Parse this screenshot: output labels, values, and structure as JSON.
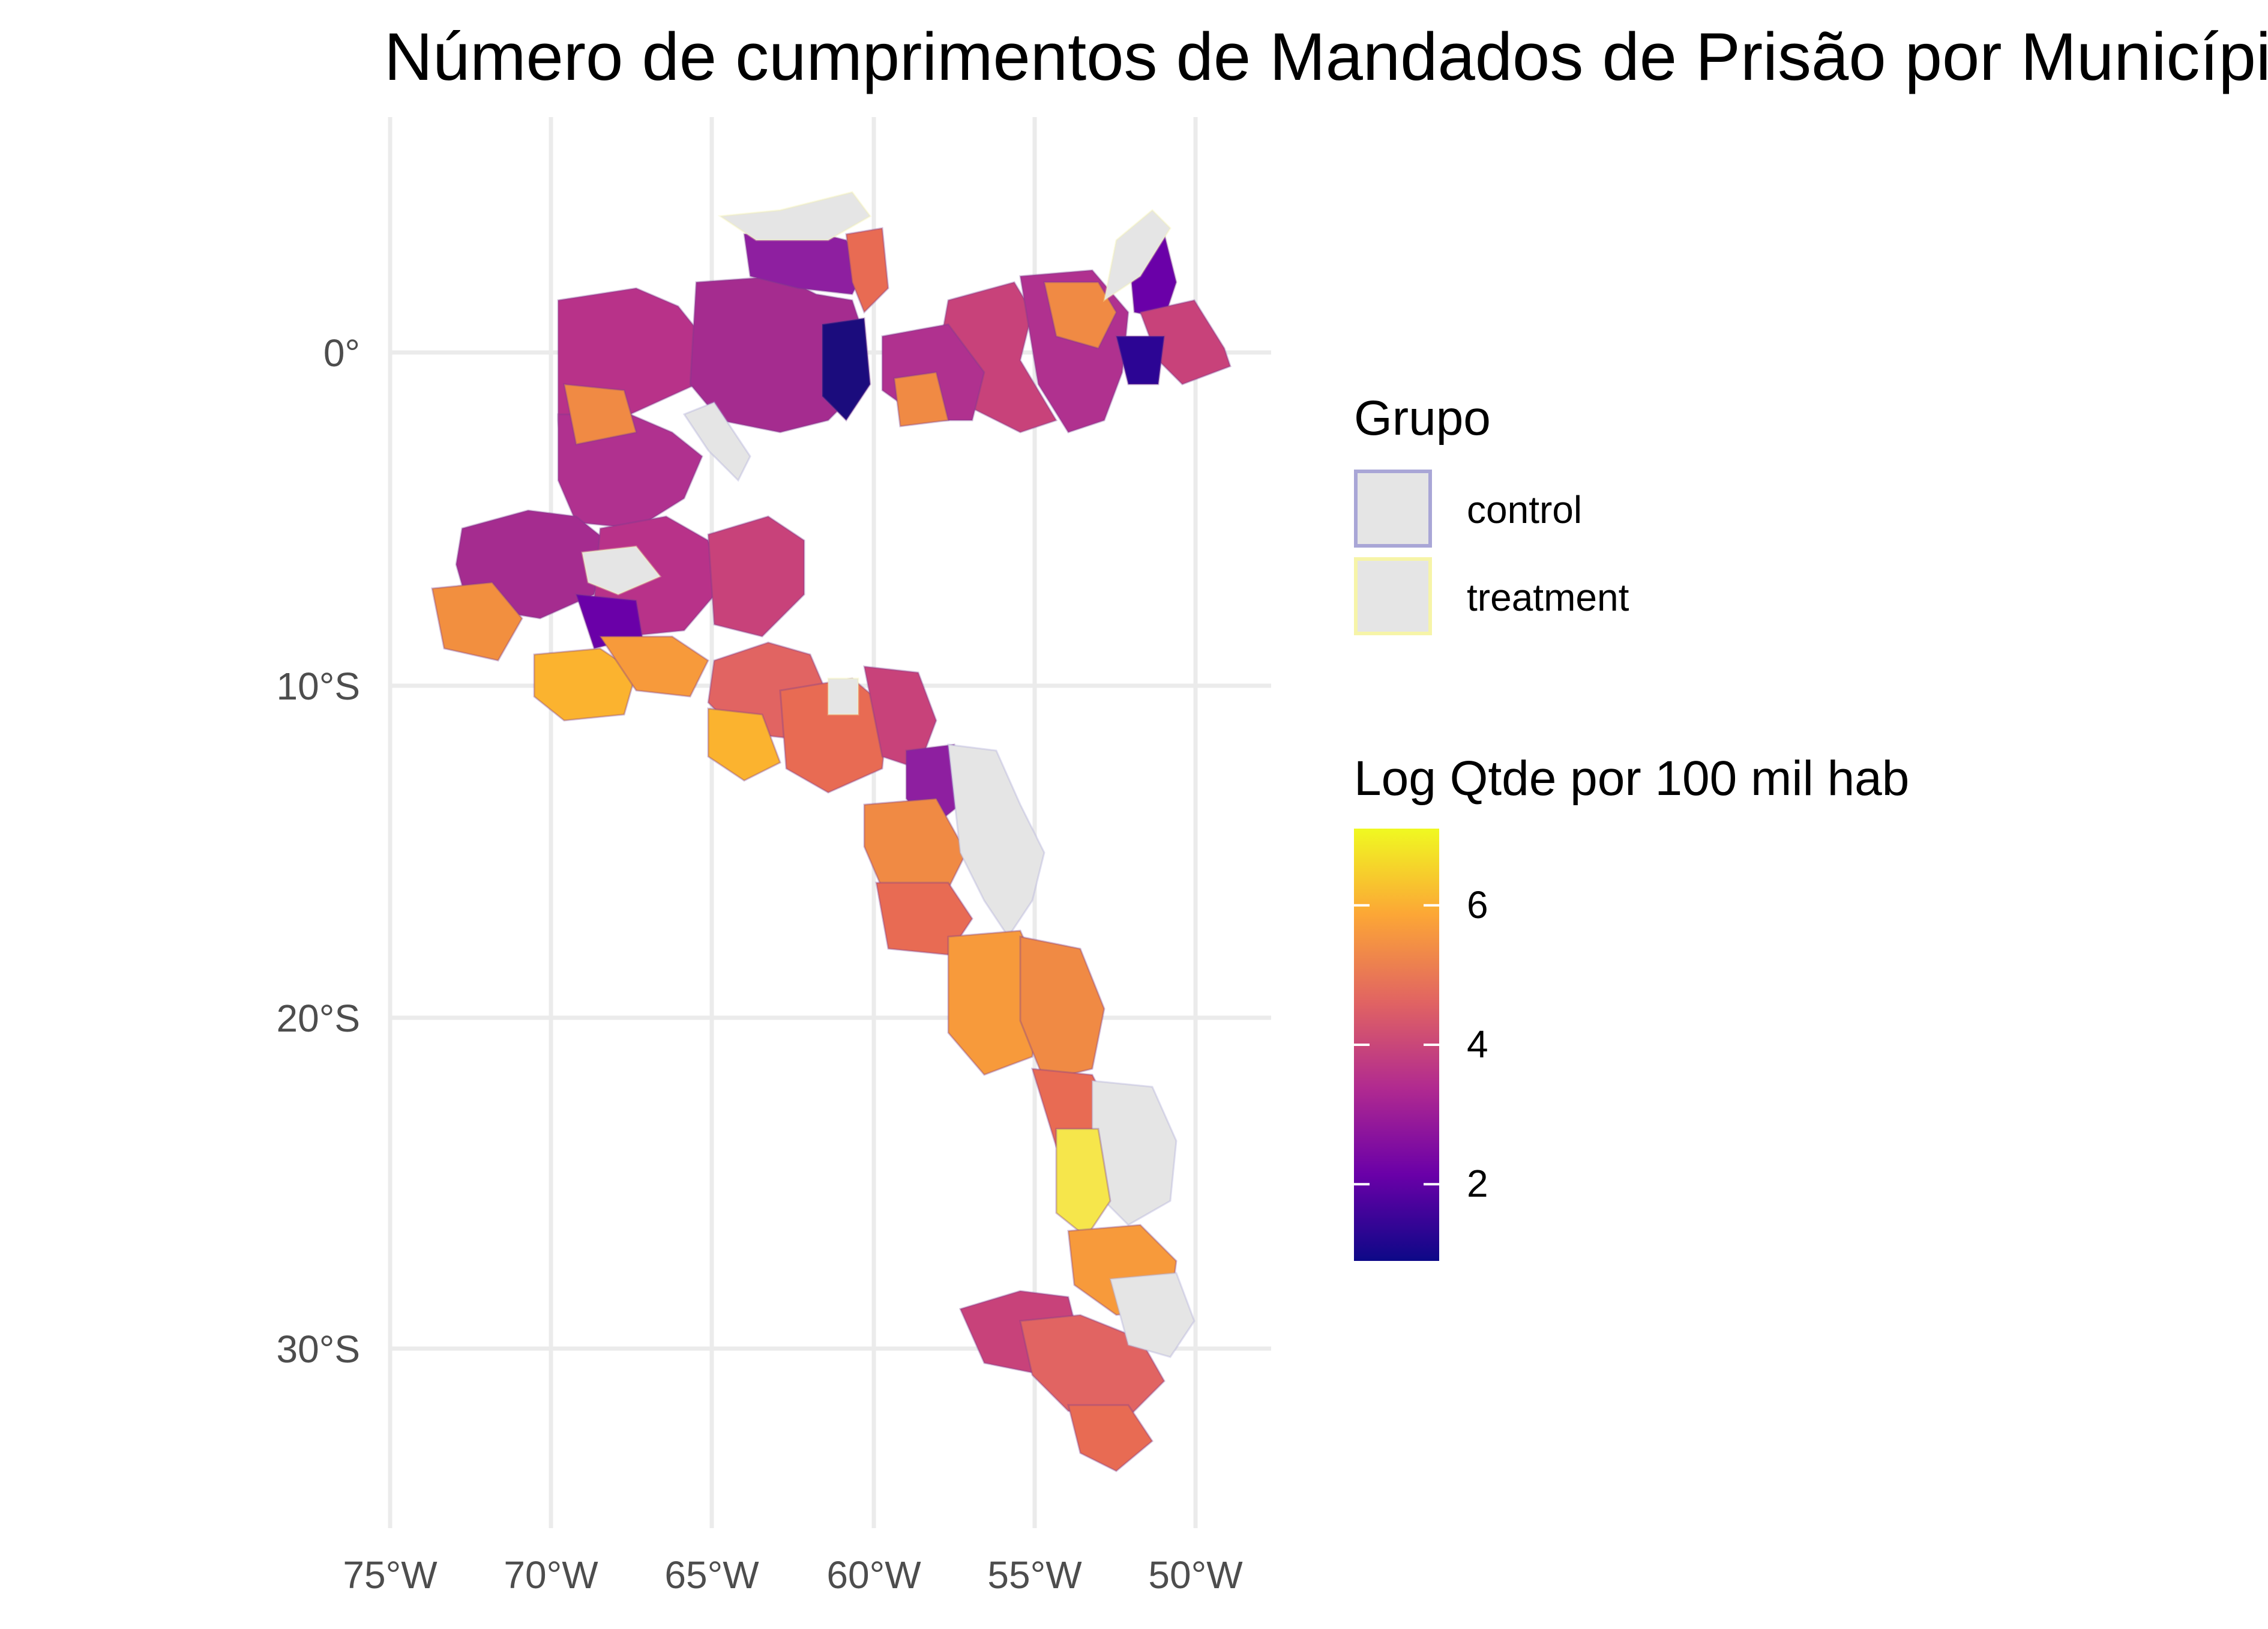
{
  "title": "Número de cumprimentos de Mandados de Prisão por Município",
  "axes": {
    "x_ticks": [
      "75°W",
      "70°W",
      "65°W",
      "60°W",
      "55°W",
      "50°W"
    ],
    "y_ticks": [
      "0°",
      "10°S",
      "20°S",
      "30°S"
    ]
  },
  "legend_group": {
    "title": "Grupo",
    "items": [
      {
        "label": "control",
        "fill": "#e5e5e5",
        "border": "#a9a6d6"
      },
      {
        "label": "treatment",
        "fill": "#e5e5e5",
        "border": "#f6f4a8"
      }
    ]
  },
  "legend_scale": {
    "title": "Log Qtde por 100 mil hab",
    "ticks": [
      "6",
      "4",
      "2"
    ],
    "tick_values": [
      6,
      4,
      2
    ],
    "min": 0.9,
    "max": 7.1,
    "palette": [
      "#0d0887",
      "#6a00a8",
      "#b12a90",
      "#e16462",
      "#fca636",
      "#f0f921"
    ]
  },
  "colors": {
    "no_data": "#e5e5e5",
    "control_border": "#a9a6d6",
    "treatment_border": "#f6f4a8",
    "grid": "#ebebeb"
  }
}
